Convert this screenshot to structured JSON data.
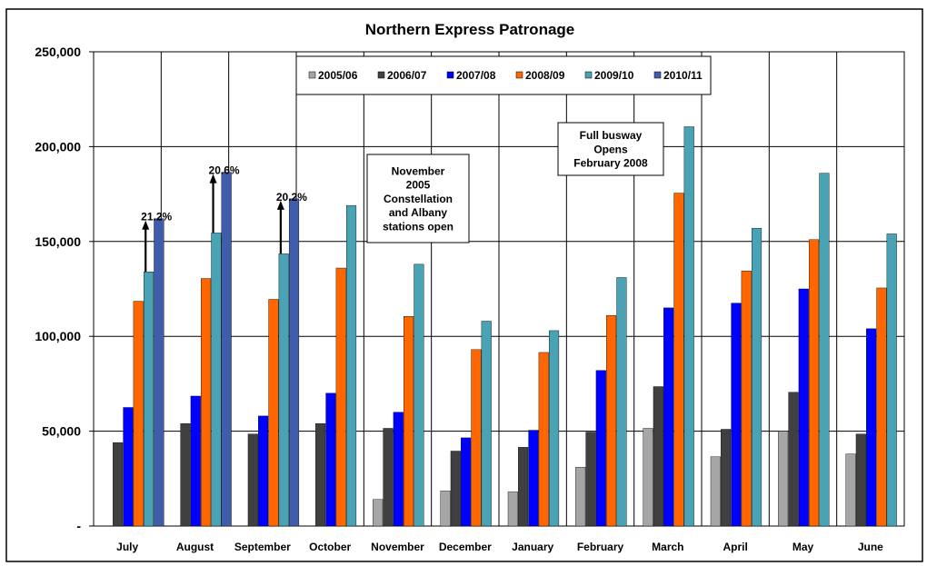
{
  "chart_data": {
    "type": "bar",
    "title": "Northern Express Patronage",
    "xlabel": "",
    "ylabel": "",
    "ylim": [
      0,
      250000
    ],
    "y_ticks": [
      {
        "value": 0,
        "label": "-"
      },
      {
        "value": 50000,
        "label": "50,000"
      },
      {
        "value": 100000,
        "label": "100,000"
      },
      {
        "value": 150000,
        "label": "150,000"
      },
      {
        "value": 200000,
        "label": "200,000"
      },
      {
        "value": 250000,
        "label": "250,000"
      }
    ],
    "grid": true,
    "legend_position": "top-center",
    "categories": [
      "July",
      "August",
      "September",
      "October",
      "November",
      "December",
      "January",
      "February",
      "March",
      "April",
      "May",
      "June"
    ],
    "series": [
      {
        "name": "2005/06",
        "color": "#a6a6a6",
        "values": [
          null,
          null,
          null,
          null,
          14000,
          18500,
          18000,
          31000,
          51500,
          36500,
          50000,
          38000
        ]
      },
      {
        "name": "2006/07",
        "color": "#404040",
        "values": [
          44000,
          54000,
          48500,
          54000,
          51500,
          39500,
          41500,
          49500,
          73500,
          51000,
          70500,
          48500
        ]
      },
      {
        "name": "2007/08",
        "color": "#0000ff",
        "values": [
          62500,
          68500,
          58000,
          70000,
          60000,
          46500,
          50500,
          82000,
          115000,
          117500,
          125000,
          104000
        ]
      },
      {
        "name": "2008/09",
        "color": "#ff6600",
        "values": [
          118500,
          130500,
          119500,
          136000,
          110500,
          93000,
          91500,
          111000,
          175500,
          134500,
          151000,
          125500
        ]
      },
      {
        "name": "2009/10",
        "color": "#4aa3b5",
        "values": [
          134000,
          154500,
          143500,
          169000,
          138000,
          108000,
          103000,
          131000,
          210500,
          157000,
          186000,
          154000
        ]
      },
      {
        "name": "2010/11",
        "color": "#3f5dab",
        "values": [
          162000,
          186500,
          172500,
          null,
          null,
          null,
          null,
          null,
          null,
          null,
          null,
          null
        ]
      }
    ],
    "growth_annotations": [
      {
        "category": "July",
        "label": "21.2%"
      },
      {
        "category": "August",
        "label": "20.6%"
      },
      {
        "category": "September",
        "label": "20.2%"
      }
    ],
    "text_annotations": [
      {
        "id": "nov2005",
        "lines": [
          "November",
          "2005",
          "Constellation",
          "and Albany",
          "stations open"
        ]
      },
      {
        "id": "busway",
        "lines": [
          "Full busway",
          "Opens",
          "February 2008"
        ]
      }
    ]
  }
}
